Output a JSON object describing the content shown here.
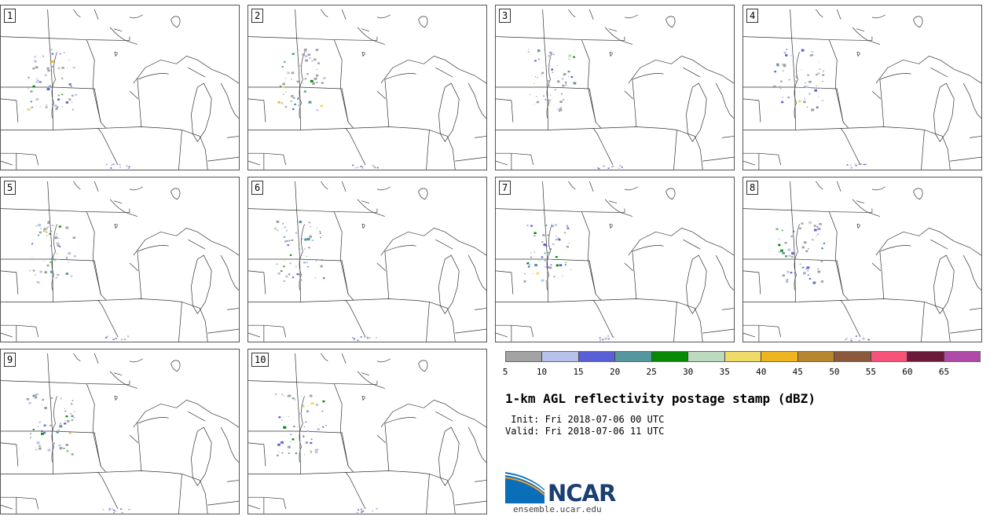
{
  "panels": [
    {
      "label": "1"
    },
    {
      "label": "2"
    },
    {
      "label": "3"
    },
    {
      "label": "4"
    },
    {
      "label": "5"
    },
    {
      "label": "6"
    },
    {
      "label": "7"
    },
    {
      "label": "8"
    },
    {
      "label": "9"
    },
    {
      "label": "10"
    }
  ],
  "colorbar": {
    "colors": [
      "#a3a3a3",
      "#b7c2ea",
      "#5a5fd8",
      "#56979f",
      "#078a07",
      "#bedabe",
      "#efdb67",
      "#efb521",
      "#b8862e",
      "#8b5a3c",
      "#f7527a",
      "#6b1a3c",
      "#b04aa8"
    ],
    "ticks": [
      "5",
      "10",
      "15",
      "20",
      "25",
      "30",
      "35",
      "40",
      "45",
      "50",
      "55",
      "60",
      "65"
    ]
  },
  "title": "1-km AGL reflectivity postage stamp (dBZ)",
  "init_line": " Init: Fri 2018-07-06 00 UTC",
  "valid_line": "Valid: Fri 2018-07-06 11 UTC",
  "logo": {
    "text": "NCAR",
    "url": "ensemble.ucar.edu"
  }
}
